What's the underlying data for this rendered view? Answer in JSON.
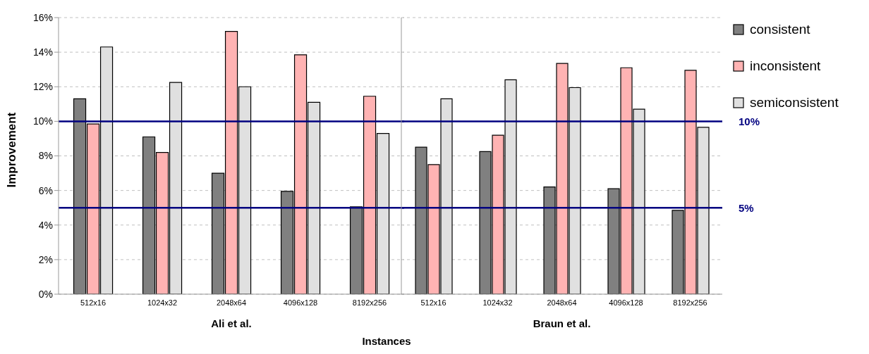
{
  "chart_data": [
    {
      "type": "bar",
      "ylabel": "Improvement",
      "xlabel": "Ali et al.",
      "categories": [
        "512x16",
        "1024x32",
        "2048x64",
        "4096x128",
        "8192x256"
      ],
      "series": [
        {
          "color": "#808080",
          "values": [
            11.3,
            9.1,
            7.0,
            5.95,
            5.05
          ]
        },
        {
          "color": "#ffb3b3",
          "values": [
            9.85,
            8.2,
            15.2,
            13.85,
            11.45
          ]
        },
        {
          "color": "#e0e0e0",
          "values": [
            14.3,
            12.25,
            12.0,
            11.1,
            9.3
          ]
        }
      ],
      "ylim": [
        0,
        16
      ],
      "yticks": [
        {
          "value": 0,
          "label": "0%"
        },
        {
          "value": 2,
          "label": "2%"
        },
        {
          "value": 4,
          "label": "4%"
        },
        {
          "value": 6,
          "label": "6%"
        },
        {
          "value": 8,
          "label": "8%"
        },
        {
          "value": 10,
          "label": "10%"
        },
        {
          "value": 12,
          "label": "12%"
        },
        {
          "value": 14,
          "label": "14%"
        },
        {
          "value": 16,
          "label": "16%"
        }
      ],
      "grid": "y",
      "legend": false,
      "ref_lines": [
        {
          "axis": "y",
          "value": 10,
          "color": "#000080"
        },
        {
          "axis": "y",
          "value": 5,
          "color": "#000080"
        }
      ],
      "annotations": [
        "Instances"
      ]
    },
    {
      "type": "bar",
      "xlabel": "Braun et al.",
      "categories": [
        "512x16",
        "1024x32",
        "2048x64",
        "4096x128",
        "8192x256"
      ],
      "series": [
        {
          "name": "consistent",
          "color": "#808080",
          "values": [
            8.5,
            8.25,
            6.2,
            6.1,
            4.85
          ]
        },
        {
          "name": "inconsistent",
          "color": "#ffb3b3",
          "values": [
            7.5,
            9.2,
            13.35,
            13.1,
            12.95
          ]
        },
        {
          "name": "semiconsistent",
          "color": "#e0e0e0",
          "values": [
            11.3,
            12.4,
            11.95,
            10.7,
            9.65
          ]
        }
      ],
      "ylim": [
        0,
        16
      ],
      "yticks": [
        0,
        2,
        4,
        6,
        8,
        10,
        12,
        14,
        16
      ],
      "tick_labels": "x",
      "grid": "y",
      "legend": "right",
      "ref_lines": [
        {
          "axis": "y",
          "value": 10,
          "label": "10%",
          "color": "#000080"
        },
        {
          "axis": "y",
          "value": 5,
          "label": "5%",
          "color": "#000080"
        }
      ]
    }
  ]
}
